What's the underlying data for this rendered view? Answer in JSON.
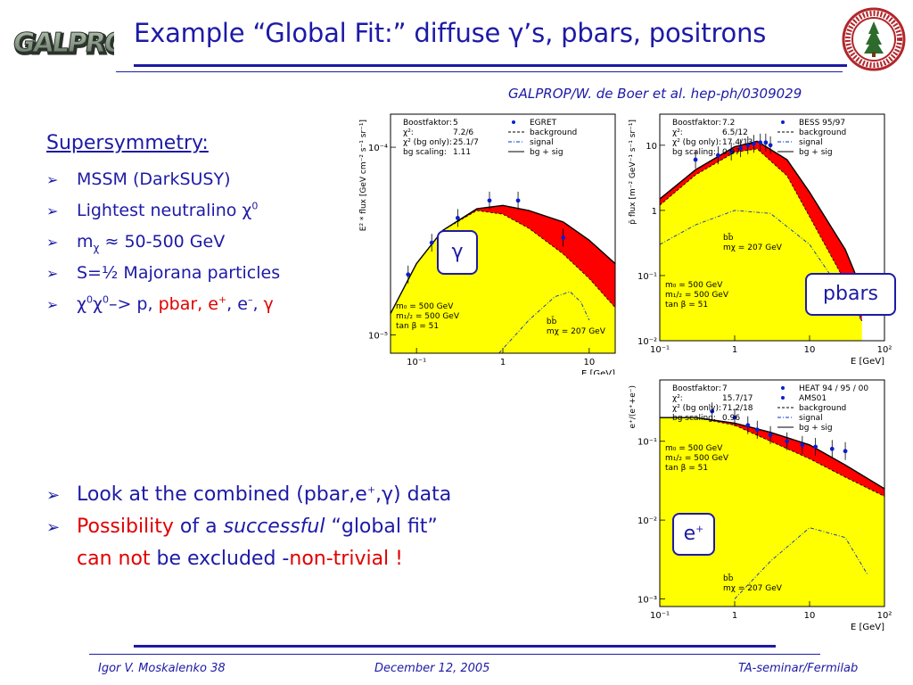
{
  "slide": {
    "logo_text": "GALPROP",
    "title": "Example “Global Fit:” diffuse γ’s, pbars, positrons",
    "citation": "GALPROP/W. de Boer et al. hep-ph/0309029",
    "heading": "Supersymmetry:",
    "bullets": {
      "b1": "MSSM (DarkSUSY)",
      "b2": "Lightest neutralino χ",
      "b2_sup": "0",
      "b3_a": "m",
      "b3_sub": "χ",
      "b3_b": " ≈ 50-500 GeV",
      "b4": "S=½ Majorana particles",
      "b5_a": "χ",
      "b5_sup1": "0",
      "b5_b": "χ",
      "b5_sup2": "0",
      "b5_c": "–> p, ",
      "b5_pbar": "pbar",
      "b5_d": ", e",
      "b5_sup3": "+",
      "b5_e": ", e",
      "b5_sup4": "–",
      "b5_f": ", ",
      "b5_gamma": "γ"
    },
    "lower": {
      "l1_a": "Look at the combined ",
      "l1_b": "(pbar,e",
      "l1_sup": "+",
      "l1_c": ",γ)",
      "l1_d": " data",
      "l2_a": "Possibility",
      "l2_b": " of a ",
      "l2_c": "successful",
      "l2_d": " “global fit”",
      "l3_a": "can not",
      "l3_b": " be excluded -",
      "l3_c": "non-trivial !"
    },
    "tags": {
      "gamma": "γ",
      "pbars": "pbars",
      "positron": "e",
      "positron_sup": "+"
    },
    "footer": {
      "author": "Igor V. Moskalenko  38",
      "date": "December 12, 2005",
      "venue": "TA-seminar/Fermilab"
    },
    "colors": {
      "accent": "#1d1aa6",
      "highlight": "#e00000",
      "fill_yellow": "#ffff00",
      "fill_red": "#ff0000"
    }
  },
  "chart_data": [
    {
      "type": "area",
      "ylabel": "E² * flux [GeV cm⁻² s⁻¹ sr⁻¹]",
      "xlabel": "E [GeV]",
      "log_x": true,
      "log_y": true,
      "xlim": [
        0.05,
        20
      ],
      "ylim": [
        8e-06,
        0.00015
      ],
      "x_ticks": [
        "10⁻¹",
        "1",
        "10"
      ],
      "y_ticks": [
        "10⁻⁴",
        "10⁻⁵"
      ],
      "legend_box": [
        {
          "key": "Boostfaktor:",
          "val": "5"
        },
        {
          "key": "χ²:",
          "val": "7.2/6"
        },
        {
          "key": "χ² (bg only):",
          "val": "25.1/7"
        },
        {
          "key": "bg scaling:",
          "val": "1.11"
        }
      ],
      "legend": [
        "EGRET",
        "background",
        "signal",
        "bg + sig"
      ],
      "annotations": [
        "bb̄",
        "mχ = 207 GeV"
      ],
      "params": [
        "m₀ = 500 GeV",
        "m₁/₂ = 500 GeV",
        "tan β = 51"
      ],
      "series": [
        {
          "name": "background",
          "x": [
            0.05,
            0.1,
            0.2,
            0.5,
            1,
            2,
            5,
            10,
            20
          ],
          "y": [
            1.3e-05,
            2.4e-05,
            3.6e-05,
            4.6e-05,
            4.4e-05,
            3.7e-05,
            2.7e-05,
            2e-05,
            1.4e-05
          ]
        },
        {
          "name": "bg + sig",
          "x": [
            0.05,
            0.1,
            0.2,
            0.5,
            1,
            2,
            5,
            10,
            20
          ],
          "y": [
            1.3e-05,
            2.4e-05,
            3.6e-05,
            4.7e-05,
            4.9e-05,
            4.6e-05,
            4e-05,
            3.2e-05,
            2.4e-05
          ]
        },
        {
          "name": "signal",
          "x": [
            0.9,
            2,
            4,
            6,
            8,
            10
          ],
          "y": [
            8e-06,
            1.2e-05,
            1.6e-05,
            1.7e-05,
            1.5e-05,
            1.2e-05
          ]
        }
      ],
      "points": {
        "name": "EGRET",
        "x": [
          0.08,
          0.15,
          0.3,
          0.7,
          1.5,
          5
        ],
        "y": [
          2.1e-05,
          3.1e-05,
          4.2e-05,
          5.2e-05,
          5.2e-05,
          3.3e-05
        ]
      }
    },
    {
      "type": "area",
      "ylabel": "p̄ flux [m⁻² GeV⁻¹ s⁻¹ sr⁻¹]",
      "xlabel": "E [GeV]",
      "log_x": true,
      "log_y": true,
      "xlim": [
        0.1,
        100
      ],
      "ylim": [
        0.01,
        30
      ],
      "x_ticks": [
        "10⁻¹",
        "1",
        "10",
        "10²"
      ],
      "y_ticks": [
        "10",
        "1",
        "10⁻¹",
        "10⁻²"
      ],
      "legend_box": [
        {
          "key": "Boostfaktor:",
          "val": "7.2"
        },
        {
          "key": "χ²:",
          "val": "6.5/12"
        },
        {
          "key": "χ² (bg only):",
          "val": "17.4/13"
        },
        {
          "key": "bg scaling:",
          "val": "0.97"
        }
      ],
      "legend": [
        "BESS 95/97",
        "background",
        "signal",
        "bg + sig"
      ],
      "annotations": [
        "bb̄",
        "mχ = 207 GeV"
      ],
      "params": [
        "m₀ = 500 GeV",
        "m₁/₂ = 500 GeV",
        "tan β = 51"
      ],
      "series": [
        {
          "name": "background",
          "x": [
            0.1,
            0.3,
            1,
            2,
            5,
            10,
            30,
            50
          ],
          "y": [
            1.2,
            3.5,
            7.8,
            8.8,
            3.4,
            0.8,
            0.08,
            0.02
          ]
        },
        {
          "name": "bg + sig",
          "x": [
            0.1,
            0.3,
            1,
            2,
            5,
            10,
            30,
            50
          ],
          "y": [
            1.5,
            4.2,
            9.5,
            11.5,
            6.0,
            1.9,
            0.25,
            0.06
          ]
        },
        {
          "name": "signal",
          "x": [
            0.1,
            0.3,
            1,
            3,
            10,
            50
          ],
          "y": [
            0.3,
            0.6,
            1.0,
            0.9,
            0.3,
            0.02
          ]
        }
      ],
      "points": {
        "name": "BESS 95/97",
        "x": [
          0.3,
          0.6,
          0.9,
          1.2,
          1.5,
          1.8,
          2.2,
          2.6,
          3.0
        ],
        "y": [
          6.0,
          7.0,
          8.0,
          9.0,
          10.0,
          10.5,
          11.0,
          11.0,
          10.0
        ]
      }
    },
    {
      "type": "area",
      "ylabel": "e⁺/(e⁺+e⁻)",
      "xlabel": "E [GeV]",
      "log_x": true,
      "log_y": true,
      "xlim": [
        0.1,
        100
      ],
      "ylim": [
        0.0008,
        0.6
      ],
      "x_ticks": [
        "10⁻¹",
        "1",
        "10",
        "10²"
      ],
      "y_ticks": [
        "10⁻¹",
        "10⁻²",
        "10⁻³"
      ],
      "legend_box": [
        {
          "key": "Boostfaktor:",
          "val": "7"
        },
        {
          "key": "χ²:",
          "val": "15.7/17"
        },
        {
          "key": "χ² (bg only):",
          "val": "71.2/18"
        },
        {
          "key": "bg scaling:",
          "val": "0.96"
        }
      ],
      "legend": [
        "HEAT 94 / 95 / 00",
        "AMS01",
        "background",
        "signal",
        "bg + sig"
      ],
      "annotations": [
        "bb̄",
        "mχ = 207 GeV"
      ],
      "params": [
        "m₀ = 500 GeV",
        "m₁/₂ = 500 GeV",
        "tan β = 51"
      ],
      "series": [
        {
          "name": "background",
          "x": [
            0.1,
            0.3,
            1,
            3,
            10,
            30,
            100
          ],
          "y": [
            0.2,
            0.2,
            0.16,
            0.1,
            0.06,
            0.035,
            0.02
          ]
        },
        {
          "name": "bg + sig",
          "x": [
            0.1,
            0.3,
            1,
            3,
            10,
            30,
            100
          ],
          "y": [
            0.2,
            0.2,
            0.17,
            0.13,
            0.09,
            0.05,
            0.025
          ]
        },
        {
          "name": "signal",
          "x": [
            1,
            3,
            10,
            30,
            60
          ],
          "y": [
            0.001,
            0.003,
            0.008,
            0.006,
            0.002
          ]
        }
      ],
      "points": {
        "name": "HEAT 94 / 95 / 00",
        "x": [
          0.5,
          1,
          1.5,
          2,
          3,
          5,
          8,
          12,
          20,
          30
        ],
        "y": [
          0.24,
          0.2,
          0.16,
          0.14,
          0.12,
          0.1,
          0.09,
          0.085,
          0.08,
          0.075
        ]
      }
    }
  ]
}
